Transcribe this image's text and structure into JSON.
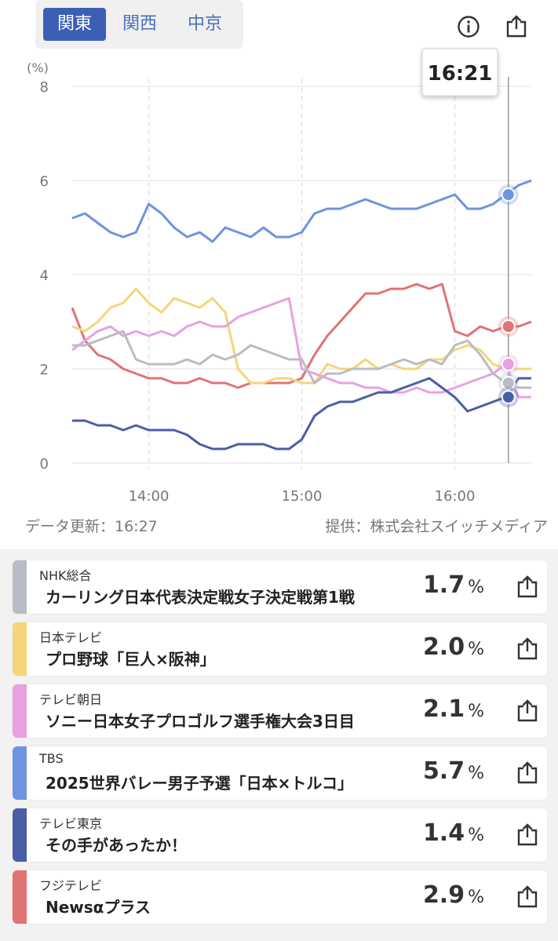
{
  "tabs": [
    {
      "label": "関東",
      "active": true
    },
    {
      "label": "関西",
      "active": false
    },
    {
      "label": "中京",
      "active": false
    }
  ],
  "header": {
    "info_icon": "info-icon",
    "share_icon": "share-icon"
  },
  "tooltip": {
    "time": "16:21"
  },
  "footer": {
    "updated": "データ更新：16:27",
    "provider": "提供：株式会社スイッチメディア"
  },
  "channels": [
    {
      "channel": "NHK総合",
      "program": "カーリング日本代表決定戦女子決定戦第1戦",
      "value": "1.7",
      "unit": "%",
      "color": "#b9bcc4"
    },
    {
      "channel": "日本テレビ",
      "program": "プロ野球「巨人×阪神」",
      "value": "2.0",
      "unit": "%",
      "color": "#f5d57a"
    },
    {
      "channel": "テレビ朝日",
      "program": "ソニー日本女子プロゴルフ選手権大会3日目",
      "value": "2.1",
      "unit": "%",
      "color": "#e9a0e2"
    },
    {
      "channel": "TBS",
      "program": "2025世界バレー男子予選「日本×トルコ」",
      "value": "5.7",
      "unit": "%",
      "color": "#6e93e3"
    },
    {
      "channel": "テレビ東京",
      "program": "その手があったか！",
      "value": "1.4",
      "unit": "%",
      "color": "#4a5ea8"
    },
    {
      "channel": "フジテレビ",
      "program": "Newsαプラス",
      "value": "2.9",
      "unit": "%",
      "color": "#e07373"
    }
  ],
  "chart_data": {
    "type": "line",
    "ylabel": "(%)",
    "ylim": [
      0,
      8
    ],
    "yticks": [
      0,
      2,
      4,
      6,
      8
    ],
    "xticks": [
      "14:00",
      "15:00",
      "16:00"
    ],
    "x_range": [
      "13:30",
      "16:30"
    ],
    "cursor_time": "16:21",
    "series": [
      {
        "name": "TBS",
        "color": "#6e93e3",
        "x": [
          "13:30",
          "13:35",
          "13:40",
          "13:45",
          "13:50",
          "13:55",
          "14:00",
          "14:05",
          "14:10",
          "14:15",
          "14:20",
          "14:25",
          "14:30",
          "14:35",
          "14:40",
          "14:45",
          "14:50",
          "14:55",
          "15:00",
          "15:05",
          "15:10",
          "15:15",
          "15:20",
          "15:25",
          "15:30",
          "15:35",
          "15:40",
          "15:45",
          "15:50",
          "15:55",
          "16:00",
          "16:05",
          "16:10",
          "16:15",
          "16:20",
          "16:25",
          "16:30"
        ],
        "y": [
          5.2,
          5.3,
          5.1,
          4.9,
          4.8,
          4.9,
          5.5,
          5.3,
          5.0,
          4.8,
          4.9,
          4.7,
          5.0,
          4.9,
          4.8,
          5.0,
          4.8,
          4.8,
          4.9,
          5.3,
          5.4,
          5.4,
          5.5,
          5.6,
          5.5,
          5.4,
          5.4,
          5.4,
          5.5,
          5.6,
          5.7,
          5.4,
          5.4,
          5.5,
          5.7,
          5.9,
          6.0
        ]
      },
      {
        "name": "フジテレビ",
        "color": "#e07373",
        "x": [
          "13:30",
          "13:35",
          "13:40",
          "13:45",
          "13:50",
          "13:55",
          "14:00",
          "14:05",
          "14:10",
          "14:15",
          "14:20",
          "14:25",
          "14:30",
          "14:35",
          "14:40",
          "14:45",
          "14:50",
          "14:55",
          "15:00",
          "15:05",
          "15:10",
          "15:15",
          "15:20",
          "15:25",
          "15:30",
          "15:35",
          "15:40",
          "15:45",
          "15:50",
          "15:55",
          "16:00",
          "16:05",
          "16:10",
          "16:15",
          "16:20",
          "16:25",
          "16:30"
        ],
        "y": [
          3.3,
          2.6,
          2.3,
          2.2,
          2.0,
          1.9,
          1.8,
          1.8,
          1.7,
          1.7,
          1.8,
          1.7,
          1.7,
          1.6,
          1.7,
          1.7,
          1.7,
          1.7,
          1.8,
          2.3,
          2.7,
          3.0,
          3.3,
          3.6,
          3.6,
          3.7,
          3.7,
          3.8,
          3.7,
          3.8,
          2.8,
          2.7,
          2.9,
          2.8,
          2.9,
          2.9,
          3.0
        ]
      },
      {
        "name": "日本テレビ",
        "color": "#f5d57a",
        "x": [
          "13:30",
          "13:35",
          "13:40",
          "13:45",
          "13:50",
          "13:55",
          "14:00",
          "14:05",
          "14:10",
          "14:15",
          "14:20",
          "14:25",
          "14:30",
          "14:35",
          "14:40",
          "14:45",
          "14:50",
          "14:55",
          "15:00",
          "15:05",
          "15:10",
          "15:15",
          "15:20",
          "15:25",
          "15:30",
          "15:35",
          "15:40",
          "15:45",
          "15:50",
          "15:55",
          "16:00",
          "16:05",
          "16:10",
          "16:15",
          "16:20",
          "16:25",
          "16:30"
        ],
        "y": [
          2.9,
          2.8,
          3.0,
          3.3,
          3.4,
          3.7,
          3.4,
          3.2,
          3.5,
          3.4,
          3.3,
          3.5,
          3.2,
          2.0,
          1.7,
          1.7,
          1.8,
          1.8,
          1.7,
          1.7,
          2.1,
          2.0,
          2.0,
          2.2,
          2.0,
          2.1,
          2.0,
          2.0,
          2.2,
          2.2,
          2.4,
          2.5,
          2.4,
          2.1,
          2.0,
          2.0,
          2.0
        ]
      },
      {
        "name": "テレビ朝日",
        "color": "#e9a0e2",
        "x": [
          "13:30",
          "13:35",
          "13:40",
          "13:45",
          "13:50",
          "13:55",
          "14:00",
          "14:05",
          "14:10",
          "14:15",
          "14:20",
          "14:25",
          "14:30",
          "14:35",
          "14:40",
          "14:45",
          "14:50",
          "14:55",
          "15:00",
          "15:05",
          "15:10",
          "15:15",
          "15:20",
          "15:25",
          "15:30",
          "15:35",
          "15:40",
          "15:45",
          "15:50",
          "15:55",
          "16:00",
          "16:05",
          "16:10",
          "16:15",
          "16:20",
          "16:25",
          "16:30"
        ],
        "y": [
          2.4,
          2.6,
          2.8,
          2.9,
          2.7,
          2.8,
          2.7,
          2.8,
          2.7,
          2.9,
          3.0,
          2.9,
          2.9,
          3.1,
          3.2,
          3.3,
          3.4,
          3.5,
          2.0,
          1.9,
          1.8,
          1.7,
          1.7,
          1.6,
          1.6,
          1.5,
          1.5,
          1.6,
          1.5,
          1.5,
          1.6,
          1.7,
          1.8,
          1.9,
          2.1,
          1.4,
          1.4
        ]
      },
      {
        "name": "NHK総合",
        "color": "#b9bcc4",
        "x": [
          "13:30",
          "13:35",
          "13:40",
          "13:45",
          "13:50",
          "13:55",
          "14:00",
          "14:05",
          "14:10",
          "14:15",
          "14:20",
          "14:25",
          "14:30",
          "14:35",
          "14:40",
          "14:45",
          "14:50",
          "14:55",
          "15:00",
          "15:05",
          "15:10",
          "15:15",
          "15:20",
          "15:25",
          "15:30",
          "15:35",
          "15:40",
          "15:45",
          "15:50",
          "15:55",
          "16:00",
          "16:05",
          "16:10",
          "16:15",
          "16:20",
          "16:25",
          "16:30"
        ],
        "y": [
          2.5,
          2.5,
          2.6,
          2.7,
          2.8,
          2.2,
          2.1,
          2.1,
          2.1,
          2.2,
          2.1,
          2.3,
          2.2,
          2.3,
          2.5,
          2.4,
          2.3,
          2.2,
          2.2,
          1.7,
          1.9,
          1.9,
          2.0,
          2.0,
          2.0,
          2.1,
          2.2,
          2.1,
          2.2,
          2.1,
          2.5,
          2.6,
          2.3,
          1.9,
          1.7,
          1.6,
          1.6
        ]
      },
      {
        "name": "テレビ東京",
        "color": "#4a5ea8",
        "x": [
          "13:30",
          "13:35",
          "13:40",
          "13:45",
          "13:50",
          "13:55",
          "14:00",
          "14:05",
          "14:10",
          "14:15",
          "14:20",
          "14:25",
          "14:30",
          "14:35",
          "14:40",
          "14:45",
          "14:50",
          "14:55",
          "15:00",
          "15:05",
          "15:10",
          "15:15",
          "15:20",
          "15:25",
          "15:30",
          "15:35",
          "15:40",
          "15:45",
          "15:50",
          "15:55",
          "16:00",
          "16:05",
          "16:10",
          "16:15",
          "16:20",
          "16:25",
          "16:30"
        ],
        "y": [
          0.9,
          0.9,
          0.8,
          0.8,
          0.7,
          0.8,
          0.7,
          0.7,
          0.7,
          0.6,
          0.4,
          0.3,
          0.3,
          0.4,
          0.4,
          0.4,
          0.3,
          0.3,
          0.5,
          1.0,
          1.2,
          1.3,
          1.3,
          1.4,
          1.5,
          1.5,
          1.6,
          1.7,
          1.8,
          1.6,
          1.4,
          1.1,
          1.2,
          1.3,
          1.4,
          1.8,
          1.8
        ]
      }
    ],
    "markers": [
      {
        "name": "TBS",
        "time": "16:21",
        "value": 5.7
      },
      {
        "name": "フジテレビ",
        "time": "16:21",
        "value": 2.9
      },
      {
        "name": "テレビ朝日",
        "time": "16:21",
        "value": 2.1
      },
      {
        "name": "NHK総合",
        "time": "16:21",
        "value": 1.7
      },
      {
        "name": "テレビ東京",
        "time": "16:21",
        "value": 1.4
      }
    ]
  }
}
